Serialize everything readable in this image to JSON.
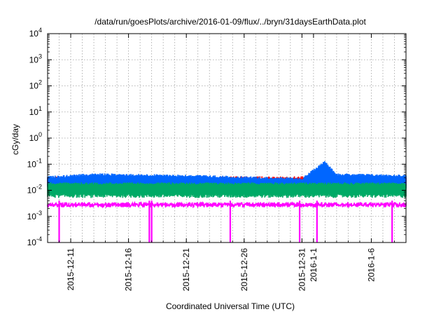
{
  "chart_data": {
    "type": "line",
    "title": "/data/run/goesPlots/archive/2016-01-09/flux/../bryn/31daysEarthData.plot",
    "xlabel": "Coordinated Universal Time (UTC)",
    "ylabel": "cGy/day",
    "yscale": "log",
    "ylim": [
      0.0001,
      10000
    ],
    "xlim": [
      "2015-12-09",
      "2016-01-09"
    ],
    "grid": true,
    "legend": "none",
    "y_ticks": [
      {
        "base": "10",
        "exp": "-4",
        "value": 0.0001
      },
      {
        "base": "10",
        "exp": "-3",
        "value": 0.001
      },
      {
        "base": "10",
        "exp": "-2",
        "value": 0.01
      },
      {
        "base": "10",
        "exp": "-1",
        "value": 0.1
      },
      {
        "base": "10",
        "exp": "0",
        "value": 1
      },
      {
        "base": "10",
        "exp": "1",
        "value": 10
      },
      {
        "base": "10",
        "exp": "2",
        "value": 100
      },
      {
        "base": "10",
        "exp": "3",
        "value": 1000
      },
      {
        "base": "10",
        "exp": "4",
        "value": 10000
      }
    ],
    "x_ticks": [
      {
        "label": "2015-12-11",
        "date": "2015-12-11"
      },
      {
        "label": "2015-12-16",
        "date": "2015-12-16"
      },
      {
        "label": "2015-12-21",
        "date": "2015-12-21"
      },
      {
        "label": "2015-12-26",
        "date": "2015-12-26"
      },
      {
        "label": "2015-12-31",
        "date": "2015-12-31"
      },
      {
        "label": "2016-1-1",
        "date": "2016-01-01"
      },
      {
        "label": "2016-1-6",
        "date": "2016-01-06"
      }
    ],
    "series": [
      {
        "color": "#ff0000",
        "level": "upper",
        "values": [
          [
            "2015-12-09",
            0.045
          ],
          [
            "2015-12-10",
            0.05
          ],
          [
            "2015-12-11",
            0.05
          ],
          [
            "2015-12-12",
            0.048
          ],
          [
            "2015-12-13",
            0.058
          ],
          [
            "2015-12-14",
            0.05
          ],
          [
            "2015-12-15",
            0.048
          ],
          [
            "2015-12-16",
            0.052
          ],
          [
            "2015-12-17",
            0.05
          ],
          [
            "2015-12-18",
            0.055
          ],
          [
            "2015-12-19",
            0.05
          ],
          [
            "2015-12-20",
            0.052
          ],
          [
            "2015-12-21",
            0.053
          ],
          [
            "2015-12-22",
            0.05
          ],
          [
            "2015-12-23",
            0.05
          ],
          [
            "2015-12-24",
            0.05
          ],
          [
            "2015-12-25",
            0.05
          ],
          [
            "2015-12-26",
            0.05
          ],
          [
            "2015-12-27",
            0.052
          ],
          [
            "2015-12-28",
            0.05
          ],
          [
            "2015-12-29",
            0.057
          ],
          [
            "2015-12-30",
            0.045
          ],
          [
            "2015-12-31",
            0.042
          ],
          [
            "2016-01-01",
            0.045
          ],
          [
            "2016-01-02",
            0.2
          ],
          [
            "2016-01-02.5",
            0.09
          ],
          [
            "2016-01-03",
            0.06
          ],
          [
            "2016-01-04",
            0.05
          ],
          [
            "2016-01-05",
            0.05
          ],
          [
            "2016-01-06",
            0.052
          ],
          [
            "2016-01-07",
            0.05
          ],
          [
            "2016-01-08",
            0.05
          ],
          [
            "2016-01-09",
            0.05
          ]
        ]
      },
      {
        "color": "#0066ff",
        "level": "mid",
        "values": [
          [
            "2015-12-09",
            0.035
          ],
          [
            "2015-12-13",
            0.045
          ],
          [
            "2015-12-21",
            0.04
          ],
          [
            "2015-12-31",
            0.03
          ],
          [
            "2016-01-02",
            0.14
          ],
          [
            "2016-01-03",
            0.045
          ],
          [
            "2016-01-09",
            0.04
          ]
        ]
      },
      {
        "color": "#00aa66",
        "level": "lower-mid",
        "values": [
          [
            "2015-12-09",
            0.02
          ],
          [
            "2016-01-09",
            0.02
          ]
        ]
      },
      {
        "color": "#ff00ff",
        "level": "lower",
        "values": [
          [
            "2015-12-09",
            0.0035
          ],
          [
            "2016-01-09",
            0.0035
          ]
        ]
      }
    ],
    "dropouts": [
      "2015-12-10",
      "2015-12-17.8",
      "2015-12-18.0",
      "2015-12-24.8",
      "2015-12-30.8",
      "2016-01-01.3",
      "2016-01-07.8"
    ]
  }
}
